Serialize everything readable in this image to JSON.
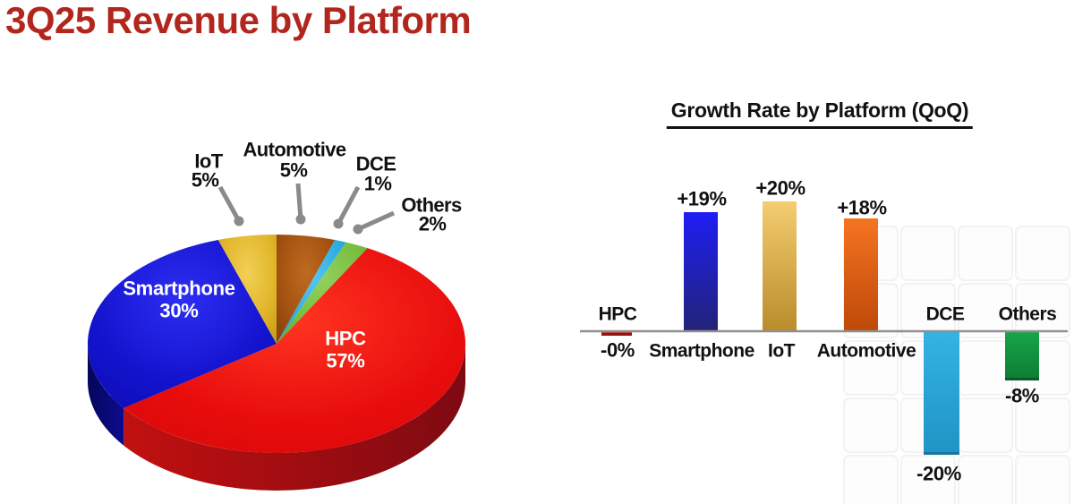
{
  "page": {
    "title": "3Q25 Revenue by Platform",
    "title_color": "#b1261d",
    "background": "#ffffff"
  },
  "chart_data": [
    {
      "type": "pie",
      "effect": "3d",
      "title": "3Q25 Revenue by Platform",
      "unit": "%",
      "categories": [
        "HPC",
        "Smartphone",
        "IoT",
        "Automotive",
        "DCE",
        "Others"
      ],
      "values": [
        57,
        30,
        5,
        5,
        1,
        2
      ],
      "value_labels": [
        "57%",
        "30%",
        "5%",
        "5%",
        "1%",
        "2%"
      ],
      "clockwise_from_top": [
        "Automotive",
        "DCE",
        "Others",
        "HPC",
        "Smartphone",
        "IoT"
      ],
      "callout_line_color": "#8a8a8a",
      "slice_styles": {
        "HPC": {
          "light": "#ff3420",
          "color": "#e80d0d",
          "dark": "#d30707",
          "side": "#c21010",
          "side2": "#7e0a12",
          "label_placement": "inside",
          "text_color": "#ffffff"
        },
        "Smartphone": {
          "light": "#2e2ef4",
          "color": "#1313cd",
          "dark": "#0b0bad",
          "side": "#05055b",
          "side2": "#0c0c8e",
          "label_placement": "inside",
          "text_color": "#ffffff"
        },
        "IoT": {
          "light": "#f2d055",
          "color": "#dfb428",
          "dark": "#bd8f14",
          "label_placement": "callout",
          "text_color": "#111111"
        },
        "Automotive": {
          "light": "#c06a20",
          "color": "#a0500f",
          "dark": "#7c3a08",
          "label_placement": "callout",
          "text_color": "#111111"
        },
        "DCE": {
          "light": "#55c6f2",
          "color": "#2aabe2",
          "dark": "#1f95c9",
          "label_placement": "callout",
          "text_color": "#111111"
        },
        "Others": {
          "light": "#92d05e",
          "color": "#76bd3d",
          "dark": "#59a026",
          "label_placement": "callout",
          "text_color": "#111111"
        }
      }
    },
    {
      "type": "bar",
      "title": "Growth Rate by Platform (QoQ)",
      "unit": "%",
      "categories": [
        "HPC",
        "Smartphone",
        "IoT",
        "Automotive",
        "DCE",
        "Others"
      ],
      "values": [
        0,
        19,
        20,
        18,
        -20,
        -8
      ],
      "value_labels": [
        "-0%",
        "+19%",
        "+20%",
        "+18%",
        "-20%",
        "-8%"
      ],
      "ylim": [
        -22,
        22
      ],
      "grid": false,
      "legend": false,
      "axis_color": "#8f8f8f",
      "bar_styles": [
        {
          "category": "HPC",
          "color_top": "#d03028",
          "color_bottom": "#b01c18",
          "edge": "#8f1414"
        },
        {
          "category": "Smartphone",
          "color_top": "#1e1ef5",
          "color_bottom": "#232377",
          "edge": null
        },
        {
          "category": "IoT",
          "color_top": "#f3cd70",
          "color_bottom": "#ba8c2a",
          "edge": null
        },
        {
          "category": "Automotive",
          "color_top": "#f57420",
          "color_bottom": "#be490a",
          "edge": null
        },
        {
          "category": "DCE",
          "color_top": "#33b4e4",
          "color_bottom": "#1f93c4",
          "edge": "#19769e"
        },
        {
          "category": "Others",
          "color_top": "#17a648",
          "color_bottom": "#0d7c33",
          "edge": "#0a5c27"
        }
      ]
    }
  ]
}
